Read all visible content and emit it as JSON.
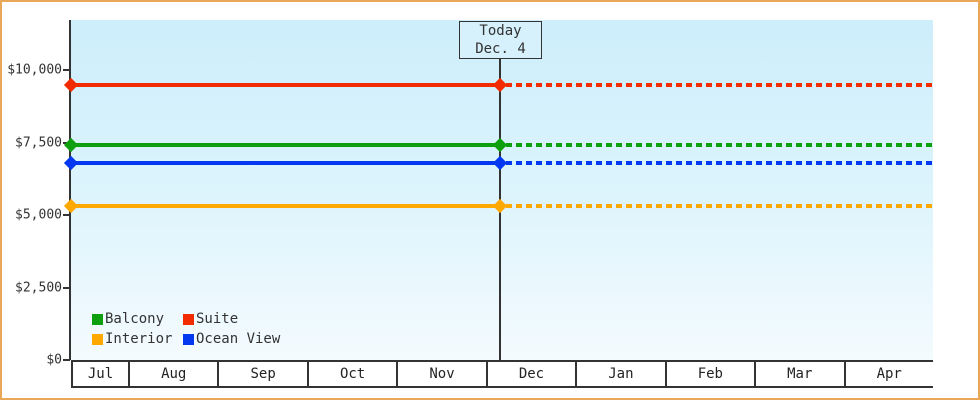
{
  "frame": {
    "border_color": "#e9a859"
  },
  "today_flag": {
    "line1": "Today",
    "line2": "Dec. 4"
  },
  "legend": {
    "items": [
      {
        "label": "Balcony",
        "color": "#0d9f0d"
      },
      {
        "label": "Suite",
        "color": "#f22b00"
      },
      {
        "label": "Interior",
        "color": "#ffa800"
      },
      {
        "label": "Ocean View",
        "color": "#0438f0"
      }
    ]
  },
  "chart_data": {
    "type": "line",
    "title": "",
    "xlabel": "",
    "ylabel": "",
    "categories": [
      "Jul",
      "Aug",
      "Sep",
      "Oct",
      "Nov",
      "Dec",
      "Jan",
      "Feb",
      "Mar",
      "Apr"
    ],
    "y_ticks": [
      {
        "value": 10000,
        "label": "$10,000"
      },
      {
        "value": 7500,
        "label": "$7,500"
      },
      {
        "value": 5000,
        "label": "$5,000"
      },
      {
        "value": 2500,
        "label": "$2,500"
      },
      {
        "value": 0,
        "label": "$0"
      }
    ],
    "ylim": [
      0,
      11700
    ],
    "grid": false,
    "legend_position": "bottom-left-inside",
    "today": {
      "label": "Today",
      "date": "Dec. 4",
      "x_fraction": 0.498
    },
    "series": [
      {
        "name": "Suite",
        "color": "#f22b00",
        "price": 9500,
        "values": [
          9500,
          9500,
          9500,
          9500,
          9500,
          9500,
          9500,
          9500,
          9500,
          9500
        ],
        "style": "solid-before-today-dotted-after"
      },
      {
        "name": "Balcony",
        "color": "#0d9f0d",
        "price": 7400,
        "values": [
          7400,
          7400,
          7400,
          7400,
          7400,
          7400,
          7400,
          7400,
          7400,
          7400
        ],
        "style": "solid-before-today-dotted-after"
      },
      {
        "name": "Ocean View",
        "color": "#0438f0",
        "price": 6800,
        "values": [
          6800,
          6800,
          6800,
          6800,
          6800,
          6800,
          6800,
          6800,
          6800,
          6800
        ],
        "style": "solid-before-today-dotted-after"
      },
      {
        "name": "Interior",
        "color": "#ffa800",
        "price": 5300,
        "values": [
          5300,
          5300,
          5300,
          5300,
          5300,
          5300,
          5300,
          5300,
          5300,
          5300
        ],
        "style": "solid-before-today-dotted-after"
      }
    ]
  }
}
